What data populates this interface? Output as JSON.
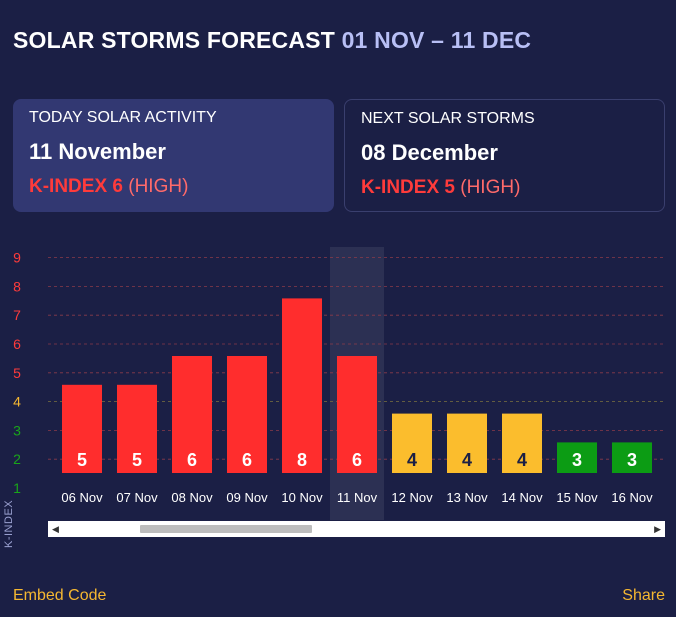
{
  "header": {
    "title": "SOLAR STORMS FORECAST",
    "range": "01 NOV – 11 DEC"
  },
  "today": {
    "label": "TODAY SOLAR ACTIVITY",
    "date": "11 November",
    "kindex": "K-INDEX 6",
    "level": "(HIGH)"
  },
  "next": {
    "label": "NEXT SOLAR STORMS",
    "date": "08 December",
    "kindex": "K-INDEX 5",
    "level": "(HIGH)"
  },
  "footer": {
    "embed": "Embed Code",
    "share": "Share"
  },
  "colors": {
    "high": "#ff2d2d",
    "medium": "#fbbd2d",
    "low": "#0c9c14",
    "background": "#1b1f45"
  },
  "chart_data": {
    "type": "bar",
    "title": "SOLAR STORMS FORECAST 01 NOV – 11 DEC",
    "ylabel": "K-INDEX",
    "xlabel": "",
    "ylim": [
      0.5,
      9
    ],
    "yticks": [
      1,
      2,
      3,
      4,
      5,
      6,
      7,
      8,
      9
    ],
    "ytick_colors": [
      "#1aa51a",
      "#1aa51a",
      "#1aa51a",
      "#f5b731",
      "#ff3b3b",
      "#ff3b3b",
      "#ff3b3b",
      "#ff3b3b",
      "#ff3b3b"
    ],
    "categories": [
      "06 Nov",
      "07 Nov",
      "08 Nov",
      "09 Nov",
      "10 Nov",
      "11 Nov",
      "12 Nov",
      "13 Nov",
      "14 Nov",
      "15 Nov",
      "16 Nov"
    ],
    "values": [
      5,
      5,
      6,
      6,
      8,
      6,
      4,
      4,
      4,
      3,
      3
    ],
    "highlight": "11 Nov",
    "grid": true
  },
  "yaxis_label": "K-INDEX"
}
